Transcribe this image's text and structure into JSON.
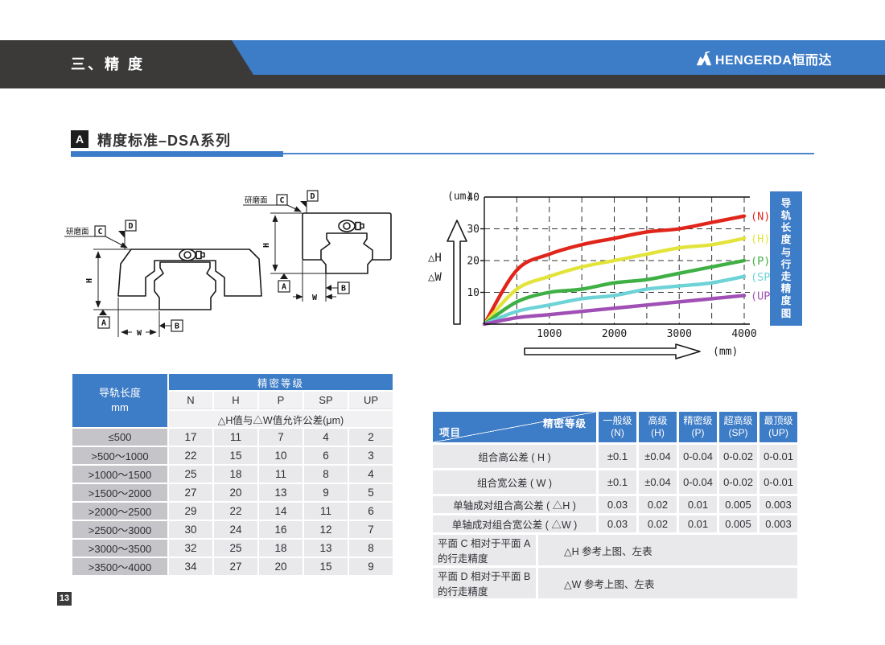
{
  "header": {
    "chapter": "三、精 度",
    "brand": "HENGERDA恒而达"
  },
  "section": {
    "marker": "A",
    "title": "精度标准–DSA系列"
  },
  "page": {
    "number": "13"
  },
  "diagram": {
    "grind_label": "研磨面",
    "datum_a": "A",
    "datum_b": "B",
    "datum_c": "C",
    "datum_d": "D",
    "dim_h": "H",
    "dim_w": "W"
  },
  "chart_data": {
    "type": "line",
    "title": "导轨长度与行走精度图",
    "xlabel": "(mm)",
    "ylabel": "(um)",
    "y_arrow_labels": [
      "△H",
      "△W"
    ],
    "x": [
      0,
      500,
      1000,
      1500,
      2000,
      2500,
      3000,
      3500,
      4000
    ],
    "series": [
      {
        "name": "(N)",
        "color": "#e0251b",
        "values": [
          0,
          17,
          22,
          25,
          27,
          29,
          30,
          32,
          34
        ]
      },
      {
        "name": "(H)",
        "color": "#e3e43b",
        "values": [
          0,
          11,
          15,
          18,
          20,
          22,
          24,
          25,
          27
        ]
      },
      {
        "name": "(P)",
        "color": "#3eb044",
        "values": [
          0,
          7,
          10,
          11,
          13,
          14,
          16,
          18,
          20
        ]
      },
      {
        "name": "(SP)",
        "color": "#6ed3d6",
        "values": [
          0,
          4,
          6,
          8,
          9,
          11,
          12,
          13,
          15
        ]
      },
      {
        "name": "(UP)",
        "color": "#a04fb5",
        "values": [
          0,
          2,
          3,
          4,
          5,
          6,
          7,
          8,
          9
        ]
      }
    ],
    "xlim": [
      0,
      4000
    ],
    "ylim": [
      0,
      40
    ],
    "xticks": [
      1000,
      2000,
      3000,
      4000
    ],
    "yticks": [
      10,
      20,
      30,
      40
    ],
    "xgridlines": [
      500,
      1000,
      1500,
      2000,
      2500,
      3000,
      3500,
      4000
    ],
    "ygridlines": [
      10,
      20,
      30
    ],
    "grid": "dashed",
    "legend_position": "right"
  },
  "table1": {
    "corner_line1": "导轨长度",
    "corner_line2": "mm",
    "grade_header": "精密等级",
    "columns": [
      "N",
      "H",
      "P",
      "SP",
      "UP"
    ],
    "tolerance_note": "△H值与△W值允许公差(μm)",
    "rows": [
      {
        "range": "≤500",
        "values": [
          17,
          11,
          7,
          4,
          2
        ]
      },
      {
        "range": ">500～1000",
        "values": [
          22,
          15,
          10,
          6,
          3
        ]
      },
      {
        "range": ">1000～1500",
        "values": [
          25,
          18,
          11,
          8,
          4
        ]
      },
      {
        "range": ">1500～2000",
        "values": [
          27,
          20,
          13,
          9,
          5
        ]
      },
      {
        "range": ">2000～2500",
        "values": [
          29,
          22,
          14,
          11,
          6
        ]
      },
      {
        "range": ">2500～3000",
        "values": [
          30,
          24,
          16,
          12,
          7
        ]
      },
      {
        "range": ">3000～3500",
        "values": [
          32,
          25,
          18,
          13,
          8
        ]
      },
      {
        "range": ">3500～4000",
        "values": [
          34,
          27,
          20,
          15,
          9
        ]
      }
    ]
  },
  "table2": {
    "corner_top": "精密等级",
    "corner_bottom": "项目",
    "columns": [
      {
        "line1": "一般级",
        "line2": "(N)"
      },
      {
        "line1": "高级",
        "line2": "(H)"
      },
      {
        "line1": "精密级",
        "line2": "(P)"
      },
      {
        "line1": "超高级",
        "line2": "(SP)"
      },
      {
        "line1": "最顶级",
        "line2": "(UP)"
      }
    ],
    "rows": [
      {
        "label": "组合高公差 ( H )",
        "values": [
          "±0.1",
          "±0.04",
          "0-0.04",
          "0-0.02",
          "0-0.01"
        ]
      },
      {
        "label": "组合宽公差 ( W )",
        "values": [
          "±0.1",
          "±0.04",
          "0-0.04",
          "0-0.02",
          "0-0.01"
        ]
      },
      {
        "label": "单轴成对组合高公差 ( △H )",
        "values": [
          "0.03",
          "0.02",
          "0.01",
          "0.005",
          "0.003"
        ]
      },
      {
        "label": "单轴成对组合宽公差 ( △W )",
        "values": [
          "0.03",
          "0.02",
          "0.01",
          "0.005",
          "0.003"
        ]
      },
      {
        "label": "平面 C 相对于平面 A 的行走精度",
        "span": "△H 参考上图、左表"
      },
      {
        "label": "平面 D 相对于平面 B 的行走精度",
        "span": "△W 参考上图、左表"
      }
    ]
  },
  "colors": {
    "blue": "#3d7cc6",
    "dark": "#3b3a39"
  }
}
